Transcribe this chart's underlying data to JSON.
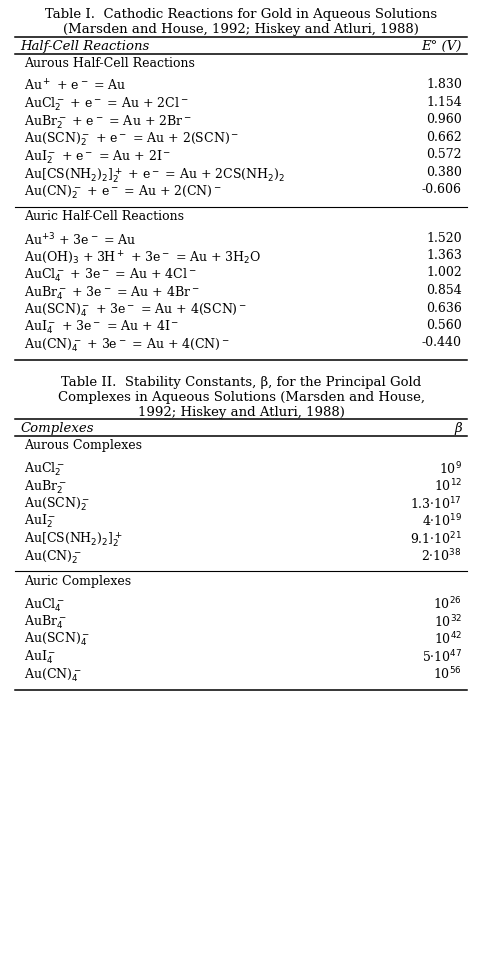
{
  "table1_title_l1": "Table I.  Cathodic Reactions for Gold in Aqueous Solutions",
  "table1_title_l2": "(Marsden and House, 1992; Hiskey and Atluri, 1988)",
  "table1_col1_header": "Half-Cell Reactions",
  "table1_col2_header": "E° (V)",
  "table1_section1": "Aurous Half-Cell Reactions",
  "table1_aurous": [
    [
      "Au$^+$ + e$^-$ = Au",
      "1.830"
    ],
    [
      "AuCl$_2^-$ + e$^-$ = Au + 2Cl$^-$",
      "1.154"
    ],
    [
      "AuBr$_2^-$ + e$^-$ = Au + 2Br$^-$",
      "0.960"
    ],
    [
      "Au(SCN)$_2^-$ + e$^-$ = Au + 2(SCN)$^-$",
      "0.662"
    ],
    [
      "AuI$_2^-$ + e$^-$ = Au + 2I$^-$",
      "0.572"
    ],
    [
      "Au[CS(NH$_2$)$_2$]$_2^+$ + e$^-$ = Au + 2CS(NH$_2$)$_2$",
      "0.380"
    ],
    [
      "Au(CN)$_2^-$ + e$^-$ = Au + 2(CN)$^-$",
      "-0.606"
    ]
  ],
  "table1_section2": "Auric Half-Cell Reactions",
  "table1_auric": [
    [
      "Au$^{+3}$ + 3e$^-$ = Au",
      "1.520"
    ],
    [
      "Au(OH)$_3$ + 3H$^+$ + 3e$^-$ = Au + 3H$_2$O",
      "1.363"
    ],
    [
      "AuCl$_4^-$ + 3e$^-$ = Au + 4Cl$^-$",
      "1.002"
    ],
    [
      "AuBr$_4^-$ + 3e$^-$ = Au + 4Br$^-$",
      "0.854"
    ],
    [
      "Au(SCN)$_4^-$ + 3e$^-$ = Au + 4(SCN)$^-$",
      "0.636"
    ],
    [
      "AuI$_4^-$ + 3e$^-$ = Au + 4I$^-$",
      "0.560"
    ],
    [
      "Au(CN)$_4^-$ + 3e$^-$ = Au + 4(CN)$^-$",
      "-0.440"
    ]
  ],
  "table2_title_l1": "Table II.  Stability Constants, β, for the Principal Gold",
  "table2_title_l2": "Complexes in Aqueous Solutions (Marsden and House,",
  "table2_title_l3": "1992; Hiskey and Atluri, 1988)",
  "table2_col1_header": "Complexes",
  "table2_col2_header": "β",
  "table2_section1": "Aurous Complexes",
  "table2_aurous": [
    [
      "AuCl$_2^-$",
      "10$^9$"
    ],
    [
      "AuBr$_2^-$",
      "10$^{12}$"
    ],
    [
      "Au(SCN)$_2^-$",
      "1.3·10$^{17}$"
    ],
    [
      "AuI$_2^-$",
      "4·10$^{19}$"
    ],
    [
      "Au[CS(NH$_2$)$_2$]$_2^+$",
      "9.1·10$^{21}$"
    ],
    [
      "Au(CN)$_2^-$",
      "2·10$^{38}$"
    ]
  ],
  "table2_section2": "Auric Complexes",
  "table2_auric": [
    [
      "AuCl$_4^-$",
      "10$^{26}$"
    ],
    [
      "AuBr$_4^-$",
      "10$^{32}$"
    ],
    [
      "Au(SCN)$_4^-$",
      "10$^{42}$"
    ],
    [
      "AuI$_4^-$",
      "5·10$^{47}$"
    ],
    [
      "Au(CN)$_4^-$",
      "10$^{56}$"
    ]
  ],
  "bg_color": "#ffffff",
  "text_color": "#000000",
  "font_size": 9.0,
  "header_font_size": 9.5,
  "title_font_size": 9.5
}
